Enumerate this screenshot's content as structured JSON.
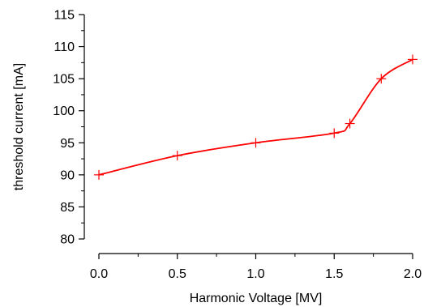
{
  "chart_data": {
    "type": "line",
    "title": "",
    "xlabel": "Harmonic Voltage [MV]",
    "ylabel": "threshold current [mA]",
    "xlim": [
      0.0,
      2.0
    ],
    "ylim": [
      80,
      115
    ],
    "xticks": [
      0.0,
      0.5,
      1.0,
      1.5,
      2.0
    ],
    "xtick_labels": [
      "0.0",
      "0.5",
      "1.0",
      "1.5",
      "2.0"
    ],
    "yticks": [
      80,
      85,
      90,
      95,
      100,
      105,
      110,
      115
    ],
    "ytick_labels": [
      "80",
      "85",
      "90",
      "95",
      "100",
      "105",
      "110",
      "115"
    ],
    "grid": false,
    "legend": "none",
    "series": [
      {
        "color": "#ff0000",
        "marker": "plus",
        "x": [
          0.0,
          0.5,
          1.0,
          1.5,
          1.6,
          1.8,
          2.0
        ],
        "y": [
          90.0,
          93.0,
          95.0,
          96.5,
          98.0,
          105.0,
          108.0
        ]
      }
    ]
  }
}
